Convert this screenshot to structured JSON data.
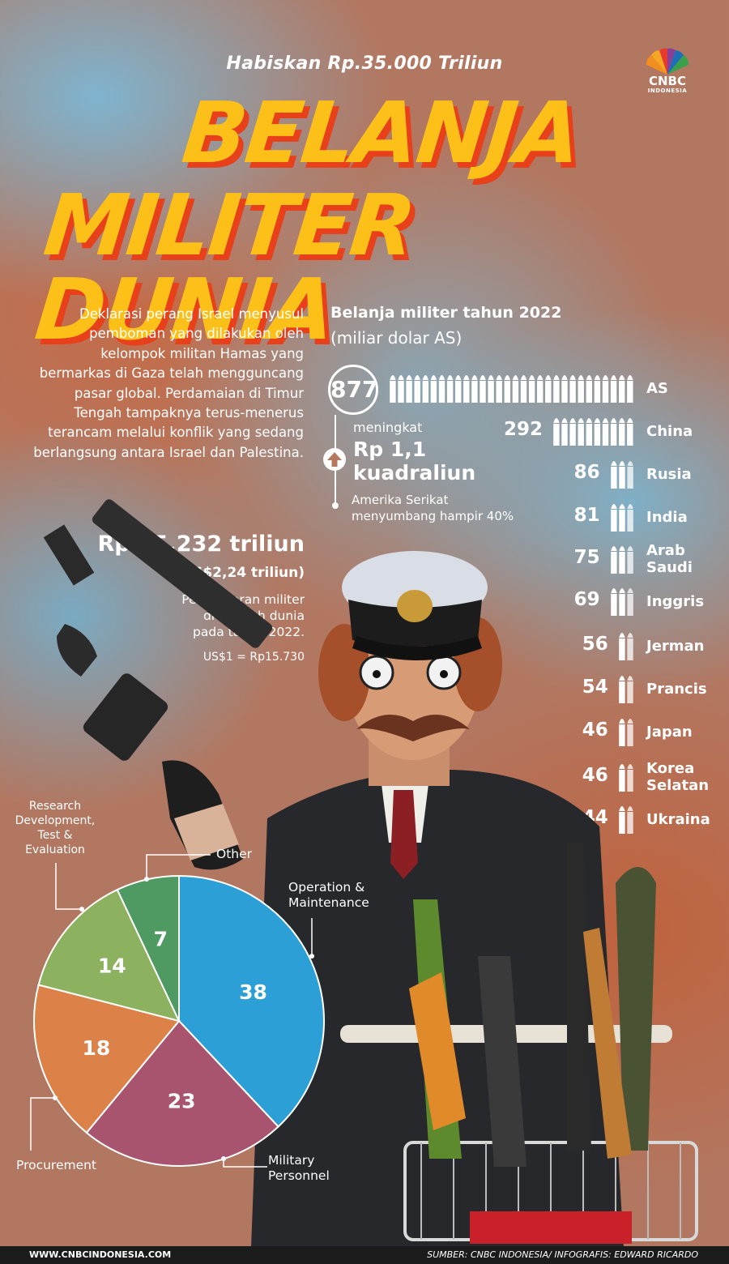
{
  "header": {
    "subtitle": "Habiskan Rp.35.000 Triliun",
    "title_line1": "BELANJA",
    "title_line2": "MILITER DUNIA",
    "logo_text": "CNBC",
    "logo_sub": "INDONESIA",
    "colors": {
      "title": "#fdc019",
      "title_shadow": "#e8401b"
    }
  },
  "intro": "Deklarasi perang Israel menyusul pemboman yang dilakukan oleh kelompok militan Hamas yang bermarkas di Gaza telah mengguncang pasar global. Perdamaian di Timur Tengah tampaknya terus-menerus terancam melalui konflik yang sedang berlangsung antara Israel dan Palestina.",
  "total": {
    "rupiah": "Rp 35.232 triliun",
    "usd": "(US$2,24 triliun)",
    "desc_line1": "Pengeluaran militer",
    "desc_line2": "di seluruh dunia",
    "desc_line3": "pada tahun 2022.",
    "rate": "US$1 = Rp15.730"
  },
  "us_note": {
    "meningkat": "meningkat",
    "amount_line1": "Rp 1,1",
    "amount_line2": "kuadraliun",
    "share_line1": "Amerika Serikat",
    "share_line2": "menyumbang hampir 40%"
  },
  "chart_data": [
    {
      "type": "bar",
      "title": "Belanja militer tahun 2022",
      "unit": "(miliar dolar AS)",
      "categories": [
        "AS",
        "China",
        "Rusia",
        "India",
        "Arab Saudi",
        "Inggris",
        "Jerman",
        "Prancis",
        "Japan",
        "Korea Selatan",
        "Ukraina"
      ],
      "category_lines": [
        [
          "AS"
        ],
        [
          "China"
        ],
        [
          "Rusia"
        ],
        [
          "India"
        ],
        [
          "Arab",
          "Saudi"
        ],
        [
          "Inggris"
        ],
        [
          "Jerman"
        ],
        [
          "Prancis"
        ],
        [
          "Japan"
        ],
        [
          "Korea",
          "Selatan"
        ],
        [
          "Ukraina"
        ]
      ],
      "values": [
        877,
        292,
        86,
        81,
        75,
        69,
        56,
        54,
        46,
        46,
        44
      ],
      "value_labels": [
        "877",
        "292",
        "86",
        "81",
        "75",
        "69",
        "56",
        "54",
        "46",
        "46",
        "44"
      ],
      "mark": "bullet-icon"
    },
    {
      "type": "pie",
      "labels": [
        "Operation & Maintenance",
        "Military Personnel",
        "Procurement",
        "Research Development, Test & Evaluation",
        "Other"
      ],
      "label_lines": [
        [
          "Operation &",
          "Maintenance"
        ],
        [
          "Military",
          "Personnel"
        ],
        [
          "Procurement"
        ],
        [
          "Research",
          "Development,",
          "Test &",
          "Evaluation"
        ],
        [
          "Other"
        ]
      ],
      "values": [
        38,
        23,
        18,
        14,
        7
      ],
      "value_labels": [
        "38",
        "23",
        "18",
        "14",
        "7"
      ],
      "colors": [
        "#2b9fd6",
        "#a8546f",
        "#dc8248",
        "#8db25f",
        "#4f9a62"
      ]
    }
  ],
  "footer": {
    "website": "WWW.CNBCINDONESIA.COM",
    "source": "SUMBER: CNBC INDONESIA/ INFOGRAFIS: EDWARD RICARDO"
  }
}
